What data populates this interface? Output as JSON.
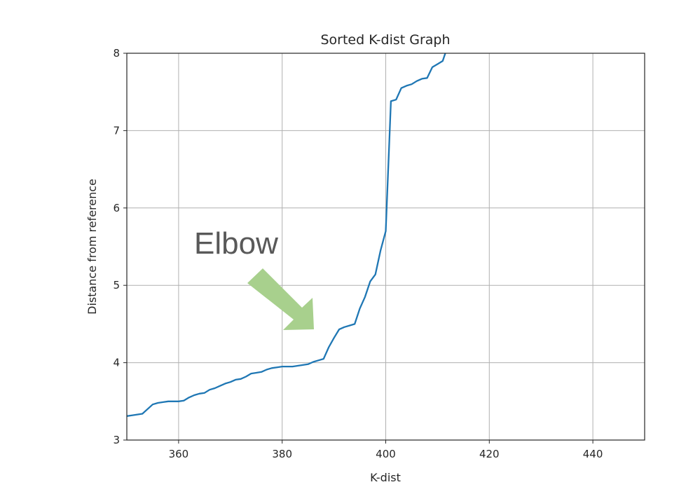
{
  "chart_data": {
    "type": "line",
    "title": "Sorted K-dist Graph",
    "xlabel": "K-dist",
    "ylabel": "Distance from reference",
    "xlim": [
      350,
      450
    ],
    "ylim": [
      3,
      8
    ],
    "grid": true,
    "xticks": [
      360,
      380,
      400,
      420,
      440
    ],
    "yticks": [
      3,
      4,
      5,
      6,
      7,
      8
    ],
    "series": [
      {
        "color": "#1f77b4",
        "x": [
          350,
          351,
          352,
          353,
          354,
          355,
          356,
          357,
          358,
          359,
          360,
          361,
          362,
          363,
          364,
          365,
          366,
          367,
          368,
          369,
          370,
          371,
          372,
          373,
          374,
          375,
          376,
          377,
          378,
          379,
          380,
          381,
          382,
          383,
          384,
          385,
          386,
          387,
          388,
          389,
          390,
          391,
          392,
          393,
          394,
          395,
          396,
          397,
          398,
          399,
          400,
          401,
          402,
          403,
          404,
          405,
          406,
          407,
          408,
          409,
          410,
          411,
          411.5
        ],
        "y": [
          3.31,
          3.32,
          3.33,
          3.34,
          3.4,
          3.46,
          3.48,
          3.49,
          3.5,
          3.5,
          3.5,
          3.51,
          3.55,
          3.58,
          3.6,
          3.61,
          3.65,
          3.67,
          3.7,
          3.73,
          3.75,
          3.78,
          3.79,
          3.82,
          3.86,
          3.87,
          3.88,
          3.91,
          3.93,
          3.94,
          3.95,
          3.95,
          3.95,
          3.96,
          3.97,
          3.98,
          4.01,
          4.03,
          4.05,
          4.2,
          4.32,
          4.43,
          4.46,
          4.48,
          4.5,
          4.7,
          4.85,
          5.05,
          5.14,
          5.45,
          5.7,
          7.38,
          7.4,
          7.55,
          7.58,
          7.6,
          7.64,
          7.67,
          7.68,
          7.82,
          7.86,
          7.9,
          8.0
        ]
      }
    ],
    "annotation": {
      "text": "Elbow",
      "arrow_color": "#a8d08d"
    }
  }
}
